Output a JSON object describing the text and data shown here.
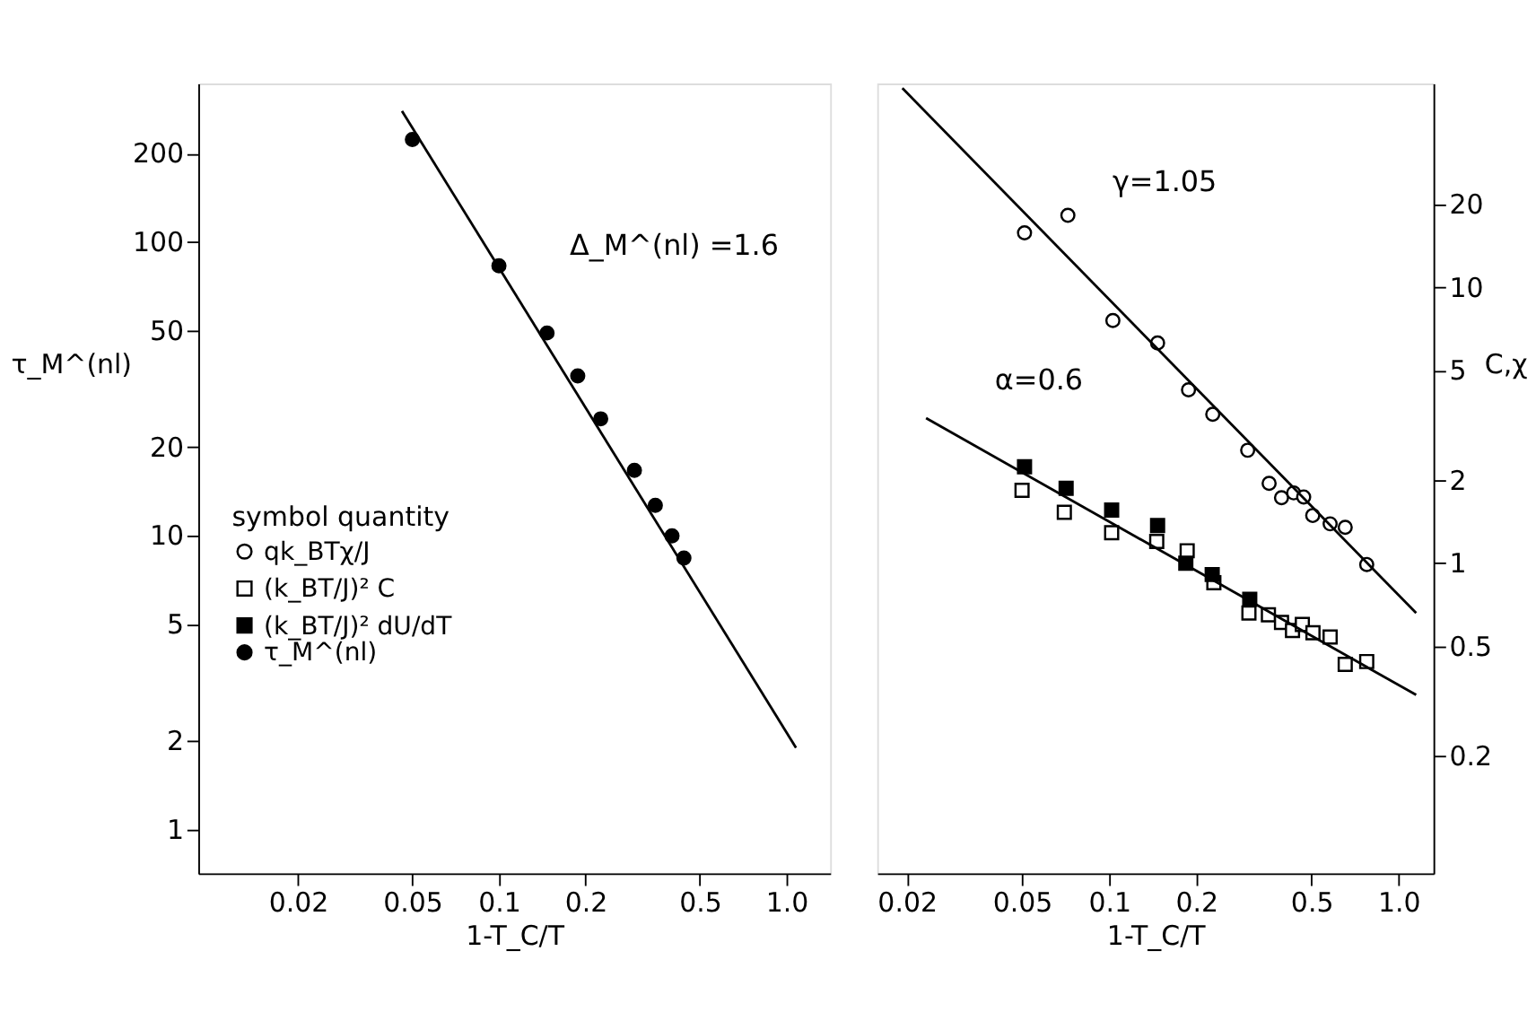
{
  "chart_data": [
    {
      "type": "scatter",
      "xlabel": "1-T_C/T",
      "ylabel": "τ_M^(nl)",
      "legend": "left",
      "grid": false,
      "log": "xy",
      "xlim": [
        0.009,
        1.42
      ],
      "ylim": [
        0.71,
        346
      ],
      "xticks": [
        0.02,
        0.05,
        0.1,
        0.2,
        0.5,
        {
          "value": 1,
          "label": "1.0"
        }
      ],
      "yticks": [
        1,
        2,
        5,
        10,
        20,
        50,
        100,
        200
      ],
      "series": [
        {
          "name": "τ_M^(nl)",
          "marker": "circle",
          "color": "#000000",
          "x": [
            0.05,
            0.1,
            0.147,
            0.188,
            0.226,
            0.296,
            0.35,
            0.4,
            0.44
          ],
          "values": [
            223,
            83,
            49,
            35,
            25,
            16.7,
            12.7,
            10,
            8.4
          ]
        },
        {
          "type": "line",
          "marker": "none",
          "line_style": "solid",
          "color": "#000000",
          "x": [
            0.046,
            1.08
          ],
          "values": [
            279,
            1.9
          ]
        }
      ],
      "annotations": [
        "Δ_M^(nl) =1.6"
      ]
    },
    {
      "type": "scatter",
      "xlabel": "1-T_C/T",
      "ylabel": "C,χ",
      "legend_title": "symbol quantity",
      "legend": "left",
      "grid": false,
      "log": "xy",
      "xlim": [
        0.0158,
        1.32
      ],
      "ylim": [
        0.075,
        55
      ],
      "xticks": [
        0.02,
        0.05,
        0.1,
        0.2,
        0.5,
        {
          "value": 1,
          "label": "1.0"
        }
      ],
      "yticks": [
        0.2,
        0.5,
        1,
        2,
        5,
        10,
        20
      ],
      "series": [
        {
          "name": "qk_BTχ/J",
          "marker": "circle",
          "color": "#ffffff",
          "x": [
            0.051,
            0.072,
            0.103,
            0.147,
            0.188,
            0.228,
            0.301,
            0.357,
            0.394,
            0.434,
            0.47,
            0.505,
            0.58,
            0.654,
            0.776
          ],
          "values": [
            15.8,
            18.3,
            7.6,
            6.3,
            4.26,
            3.47,
            2.57,
            1.95,
            1.73,
            1.8,
            1.74,
            1.49,
            1.39,
            1.35,
            0.99
          ]
        },
        {
          "name": "(k_BT/J)² C",
          "marker": "square",
          "color": "#ffffff",
          "x": [
            0.05,
            0.07,
            0.102,
            0.146,
            0.186,
            0.23,
            0.304,
            0.355,
            0.394,
            0.43,
            0.465,
            0.506,
            0.58,
            0.654,
            0.776
          ],
          "values": [
            1.84,
            1.53,
            1.29,
            1.2,
            1.11,
            0.85,
            0.66,
            0.65,
            0.61,
            0.57,
            0.6,
            0.56,
            0.54,
            0.43,
            0.44
          ]
        },
        {
          "name": "(k_BT/J)² dU/dT",
          "marker": "square",
          "color": "#000000",
          "x": [
            0.051,
            0.071,
            0.102,
            0.147,
            0.184,
            0.227,
            0.306
          ],
          "values": [
            2.24,
            1.87,
            1.56,
            1.37,
            1.0,
            0.91,
            0.74
          ]
        },
        {
          "type": "line",
          "marker": "none",
          "line_style": "solid",
          "color": "#000000",
          "x": [
            0.0193,
            1.15
          ],
          "values": [
            52.9,
            0.66
          ]
        },
        {
          "type": "line",
          "marker": "none",
          "line_style": "solid",
          "color": "#000000",
          "x": [
            0.0233,
            1.15
          ],
          "values": [
            3.36,
            0.333
          ]
        }
      ],
      "annotations": [
        "γ=1.05",
        "α=0.6"
      ]
    }
  ]
}
